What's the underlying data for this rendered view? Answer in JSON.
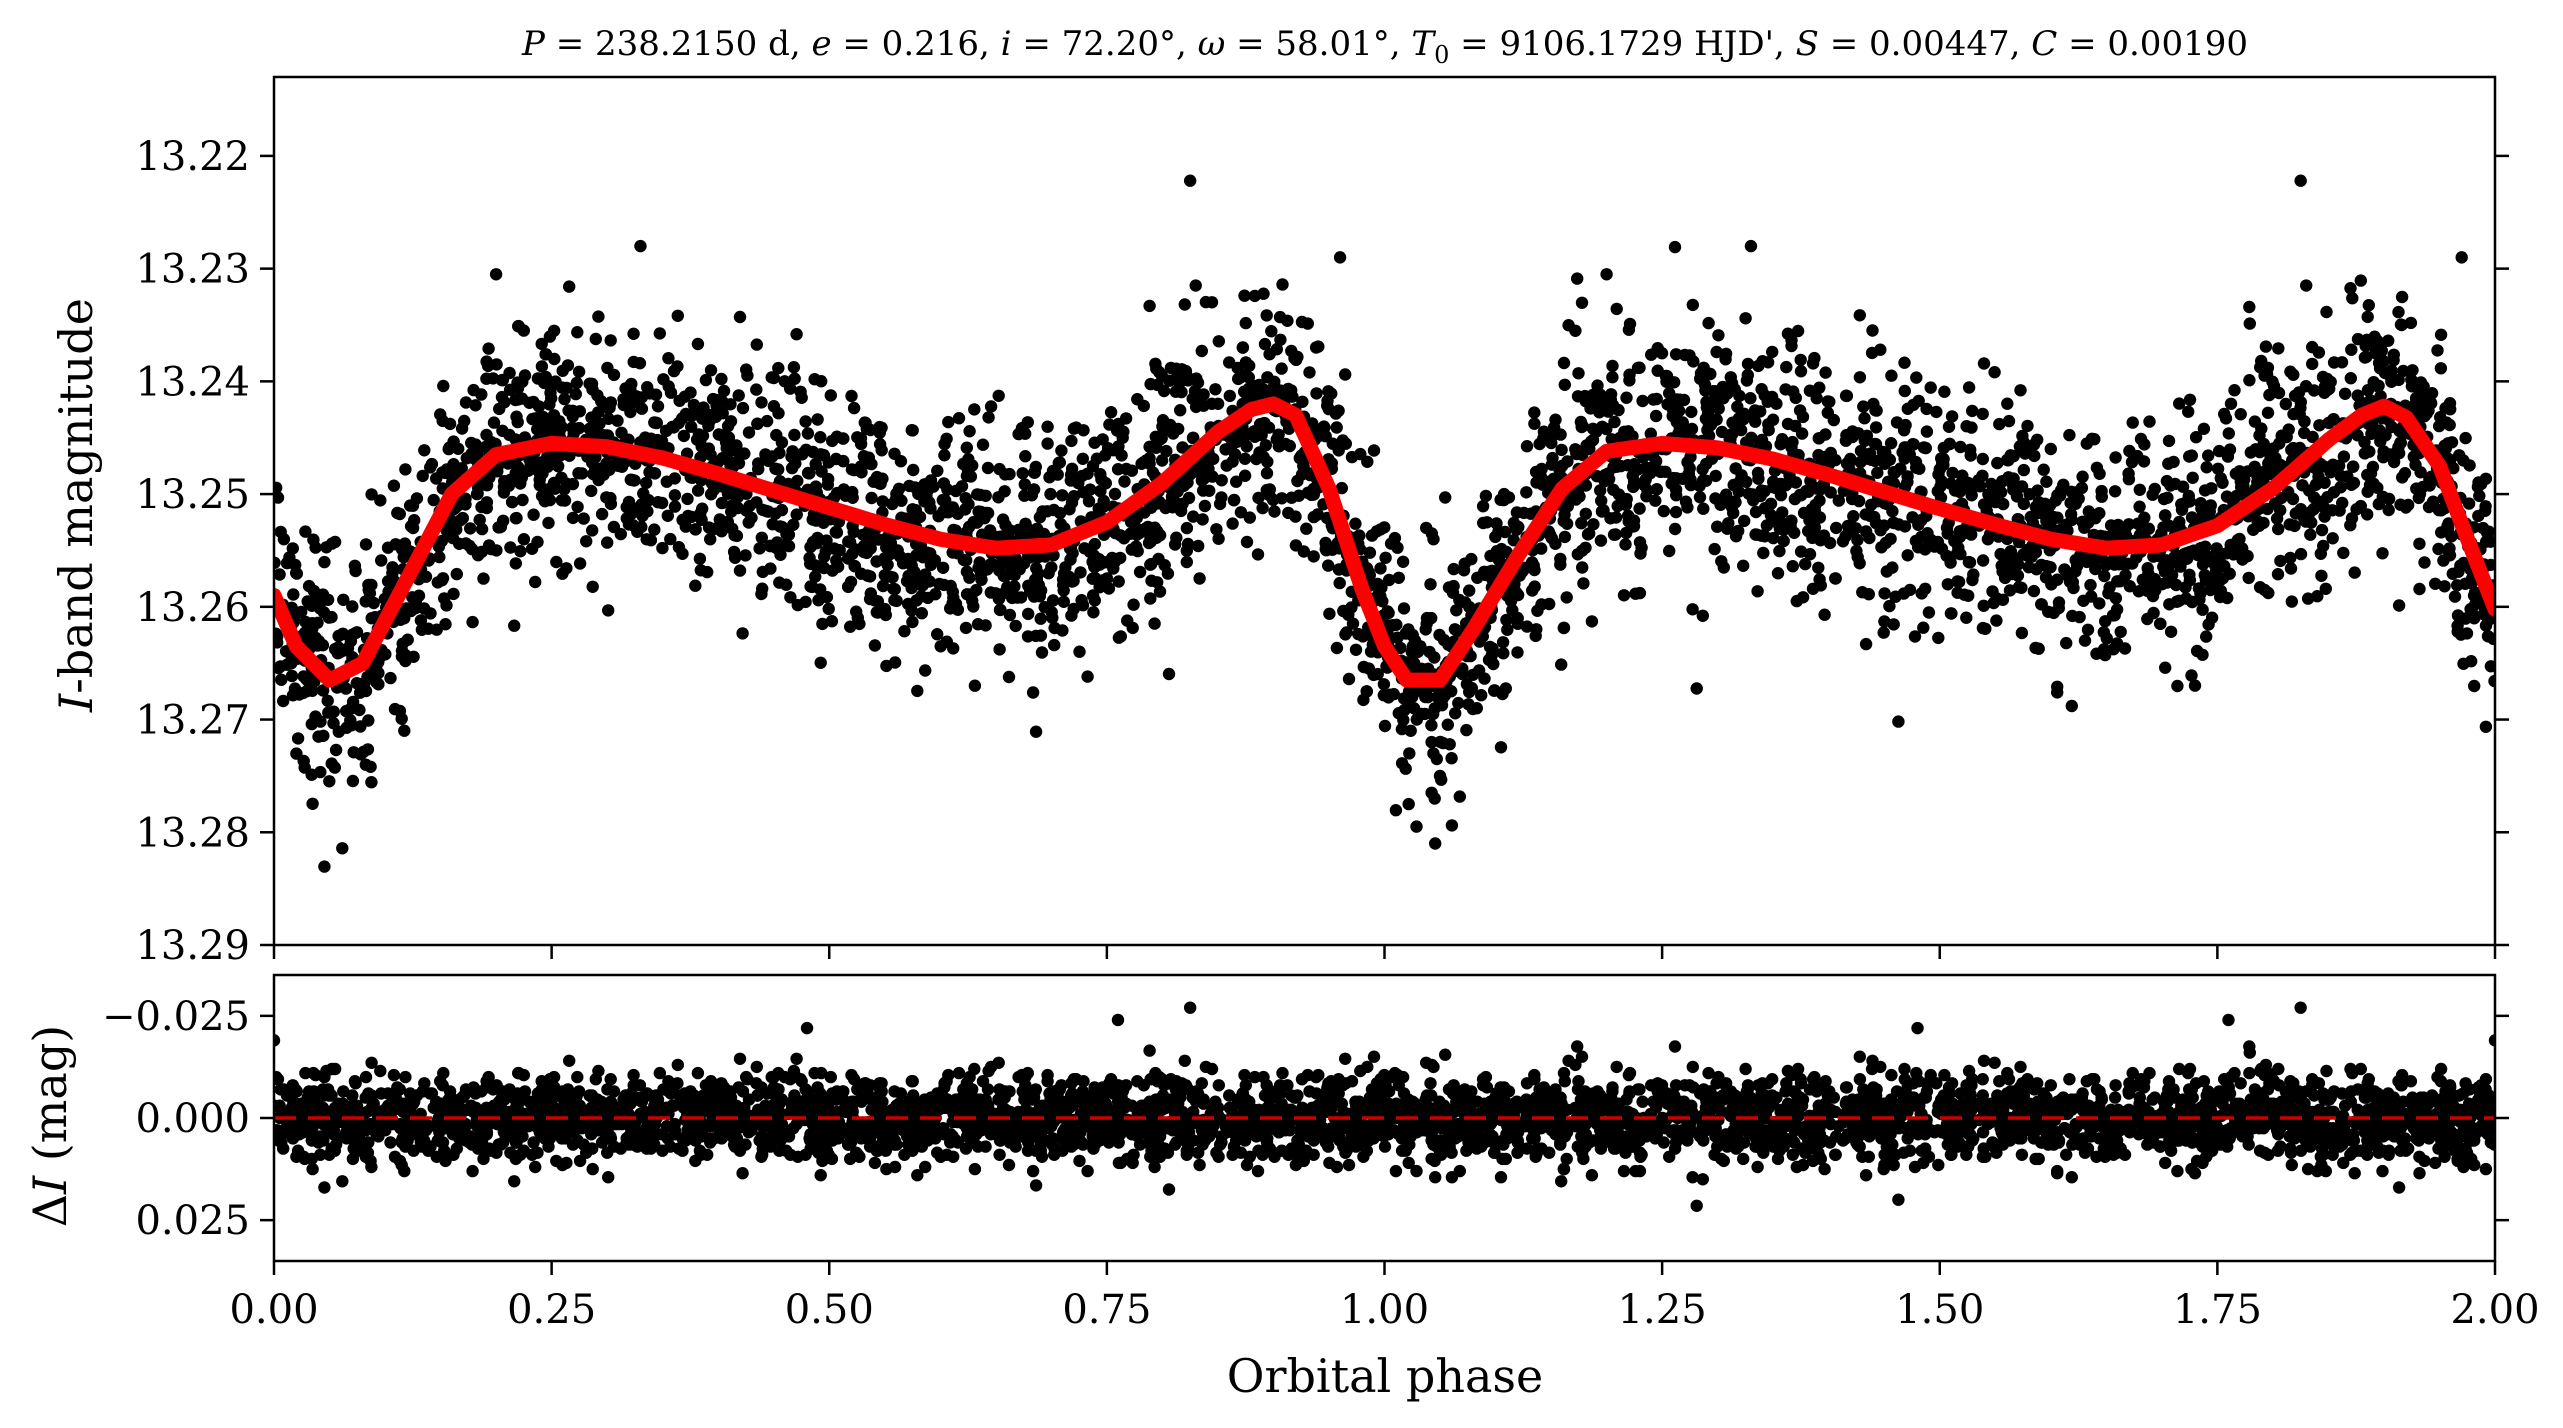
{
  "chart_data": [
    {
      "type": "scatter",
      "panel": "light-curve",
      "title": "P = 238.2150 d, e = 0.216, i = 72.20°, ω = 58.01°, T₀ = 9106.1729 HJD', S = 0.00447, C = 0.00190",
      "title_parts": {
        "P_sym": "P",
        "P_val": " = 238.2150 d, ",
        "e_sym": "e",
        "e_val": " = 0.216, ",
        "i_sym": "i",
        "i_val": " = 72.20°, ",
        "w_sym": "ω",
        "w_val": " = 58.01°, ",
        "T_sym": "T",
        "T_sub": "0",
        "T_val": " = 9106.1729 HJD', ",
        "S_sym": "S",
        "S_val": " = 0.00447, ",
        "C_sym": "C",
        "C_val": " = 0.00190"
      },
      "xlabel": "",
      "ylabel_italic": "I",
      "ylabel_rest": "-band magnitude",
      "xlim": [
        0.0,
        2.0
      ],
      "ylim": [
        13.29,
        13.213
      ],
      "y_inverted": true,
      "yticks": [
        13.22,
        13.23,
        13.24,
        13.25,
        13.26,
        13.27,
        13.28,
        13.29
      ],
      "ytick_labels": [
        "13.22",
        "13.23",
        "13.24",
        "13.25",
        "13.26",
        "13.27",
        "13.28",
        "13.29"
      ],
      "marker_color": "#000000",
      "fit_color": "#ff0000",
      "fit_curve": {
        "x": [
          0.0,
          0.02,
          0.05,
          0.08,
          0.12,
          0.16,
          0.2,
          0.25,
          0.3,
          0.35,
          0.4,
          0.45,
          0.5,
          0.55,
          0.6,
          0.65,
          0.7,
          0.75,
          0.8,
          0.85,
          0.88,
          0.9,
          0.92,
          0.95,
          0.98,
          1.0,
          1.02,
          1.05,
          1.08,
          1.12,
          1.16,
          1.2,
          1.25,
          1.3,
          1.35,
          1.4,
          1.45,
          1.5,
          1.55,
          1.6,
          1.65,
          1.7,
          1.75,
          1.8,
          1.85,
          1.88,
          1.9,
          1.92,
          1.95,
          1.98,
          2.0
        ],
        "y": [
          13.259,
          13.2635,
          13.2665,
          13.265,
          13.2575,
          13.25,
          13.2465,
          13.2455,
          13.2458,
          13.2468,
          13.2482,
          13.2497,
          13.2512,
          13.2527,
          13.254,
          13.2548,
          13.2545,
          13.2525,
          13.249,
          13.2445,
          13.2425,
          13.242,
          13.243,
          13.2495,
          13.2585,
          13.2635,
          13.2665,
          13.2665,
          13.262,
          13.2555,
          13.2495,
          13.2462,
          13.2455,
          13.2459,
          13.2469,
          13.2483,
          13.2498,
          13.2513,
          13.2527,
          13.254,
          13.2548,
          13.2545,
          13.2528,
          13.2495,
          13.2452,
          13.243,
          13.2422,
          13.2432,
          13.2475,
          13.2552,
          13.2602
        ]
      },
      "outliers": {
        "x": [
          0.825,
          1.825,
          0.33,
          1.33,
          0.2,
          1.2,
          0.96,
          0.83,
          1.83,
          1.97
        ],
        "y": [
          13.2222,
          13.2222,
          13.228,
          13.228,
          13.2305,
          13.2305,
          13.229,
          13.2315,
          13.2315,
          13.229
        ]
      }
    },
    {
      "type": "scatter",
      "panel": "residuals",
      "xlabel": "Orbital phase",
      "ylabel_greek": "Δ",
      "ylabel_italic": "I",
      "ylabel_rest": " (mag)",
      "xlim": [
        0.0,
        2.0
      ],
      "ylim": [
        0.035,
        -0.035
      ],
      "y_inverted": true,
      "yticks": [
        -0.025,
        0.0,
        0.025
      ],
      "ytick_labels": [
        "−0.025",
        "0.000",
        "0.025"
      ],
      "xticks": [
        0.0,
        0.25,
        0.5,
        0.75,
        1.0,
        1.25,
        1.5,
        1.75,
        2.0
      ],
      "xtick_labels": [
        "0.00",
        "0.25",
        "0.50",
        "0.75",
        "1.00",
        "1.25",
        "1.50",
        "1.75",
        "2.00"
      ],
      "zero_line": 0.0,
      "zero_line_color": "#cc0000",
      "marker_color": "#000000",
      "outliers": {
        "x": [
          0.825,
          1.825,
          0.0,
          2.0,
          0.48,
          1.48,
          0.76,
          1.76
        ],
        "y": [
          -0.027,
          -0.027,
          -0.019,
          -0.019,
          -0.022,
          -0.022,
          -0.024,
          -0.024
        ]
      }
    }
  ]
}
